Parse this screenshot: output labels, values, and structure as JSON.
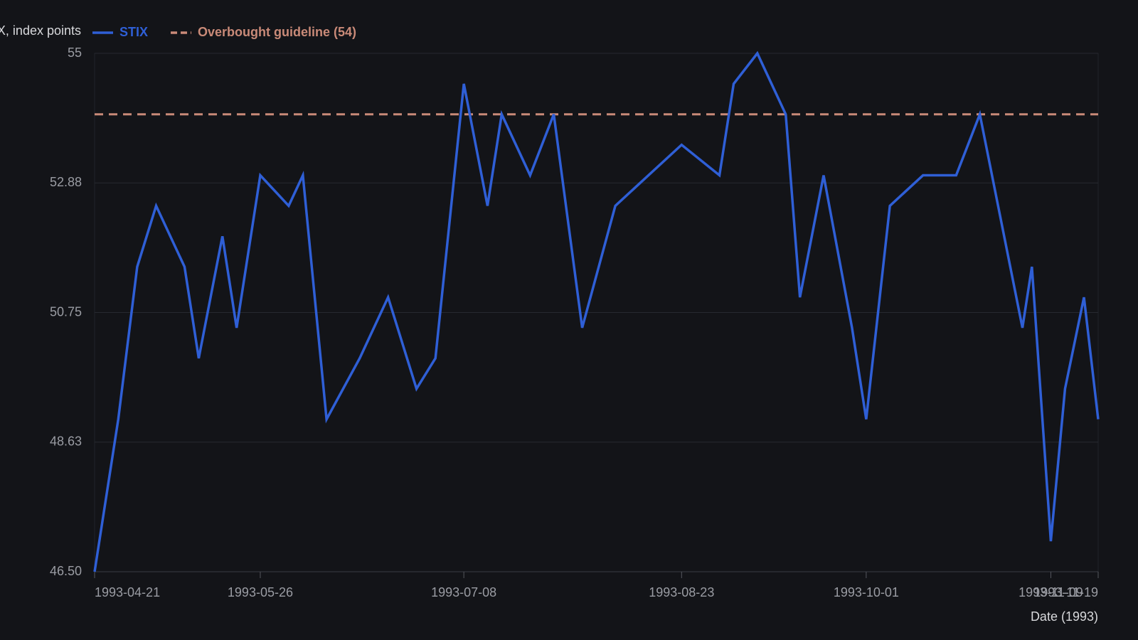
{
  "chart_data": {
    "type": "line",
    "y_label": "STIX, index points",
    "x_label": "Date (1993)",
    "x": [
      "1993-04-21",
      "1993-04-26",
      "1993-04-30",
      "1993-05-04",
      "1993-05-10",
      "1993-05-13",
      "1993-05-18",
      "1993-05-21",
      "1993-05-26",
      "1993-06-01",
      "1993-06-04",
      "1993-06-09",
      "1993-06-16",
      "1993-06-22",
      "1993-06-28",
      "1993-07-02",
      "1993-07-08",
      "1993-07-13",
      "1993-07-16",
      "1993-07-22",
      "1993-07-27",
      "1993-08-02",
      "1993-08-09",
      "1993-08-23",
      "1993-08-31",
      "1993-09-03",
      "1993-09-08",
      "1993-09-14",
      "1993-09-17",
      "1993-09-22",
      "1993-09-28",
      "1993-10-01",
      "1993-10-06",
      "1993-10-13",
      "1993-10-20",
      "1993-10-25",
      "1993-11-03",
      "1993-11-05",
      "1993-11-09",
      "1993-11-12",
      "1993-11-16",
      "1993-11-19"
    ],
    "series": [
      {
        "name": "STIX",
        "color": "#2f5fd6",
        "values": [
          46.5,
          49,
          51.5,
          52.5,
          51.5,
          50,
          52,
          50.5,
          53,
          52.5,
          53,
          49,
          50,
          51,
          49.5,
          50,
          54.5,
          52.5,
          54,
          53,
          54,
          50.5,
          52.5,
          53.5,
          53,
          54.5,
          55,
          54,
          51,
          53,
          50.5,
          49,
          52.5,
          53,
          53,
          54,
          50.5,
          51.5,
          47,
          49.5,
          51,
          49
        ]
      }
    ],
    "reference_line": {
      "name": "Overbought guideline (54)",
      "value": 54,
      "color": "#c98a78",
      "style": "dashed"
    },
    "xlim": [
      "1993-04-21",
      "1993-11-19"
    ],
    "xticks": [
      "1993-04-21",
      "1993-05-26",
      "1993-07-08",
      "1993-08-23",
      "1993-10-01",
      "1993-11-09",
      "1993-11-19"
    ],
    "ylim": [
      46.5,
      55
    ],
    "yticks": [
      {
        "value": 46.5,
        "label": "46.50"
      },
      {
        "value": 48.625,
        "label": "48.63"
      },
      50.75,
      {
        "value": 52.875,
        "label": "52.88"
      },
      55
    ],
    "grid": true
  }
}
